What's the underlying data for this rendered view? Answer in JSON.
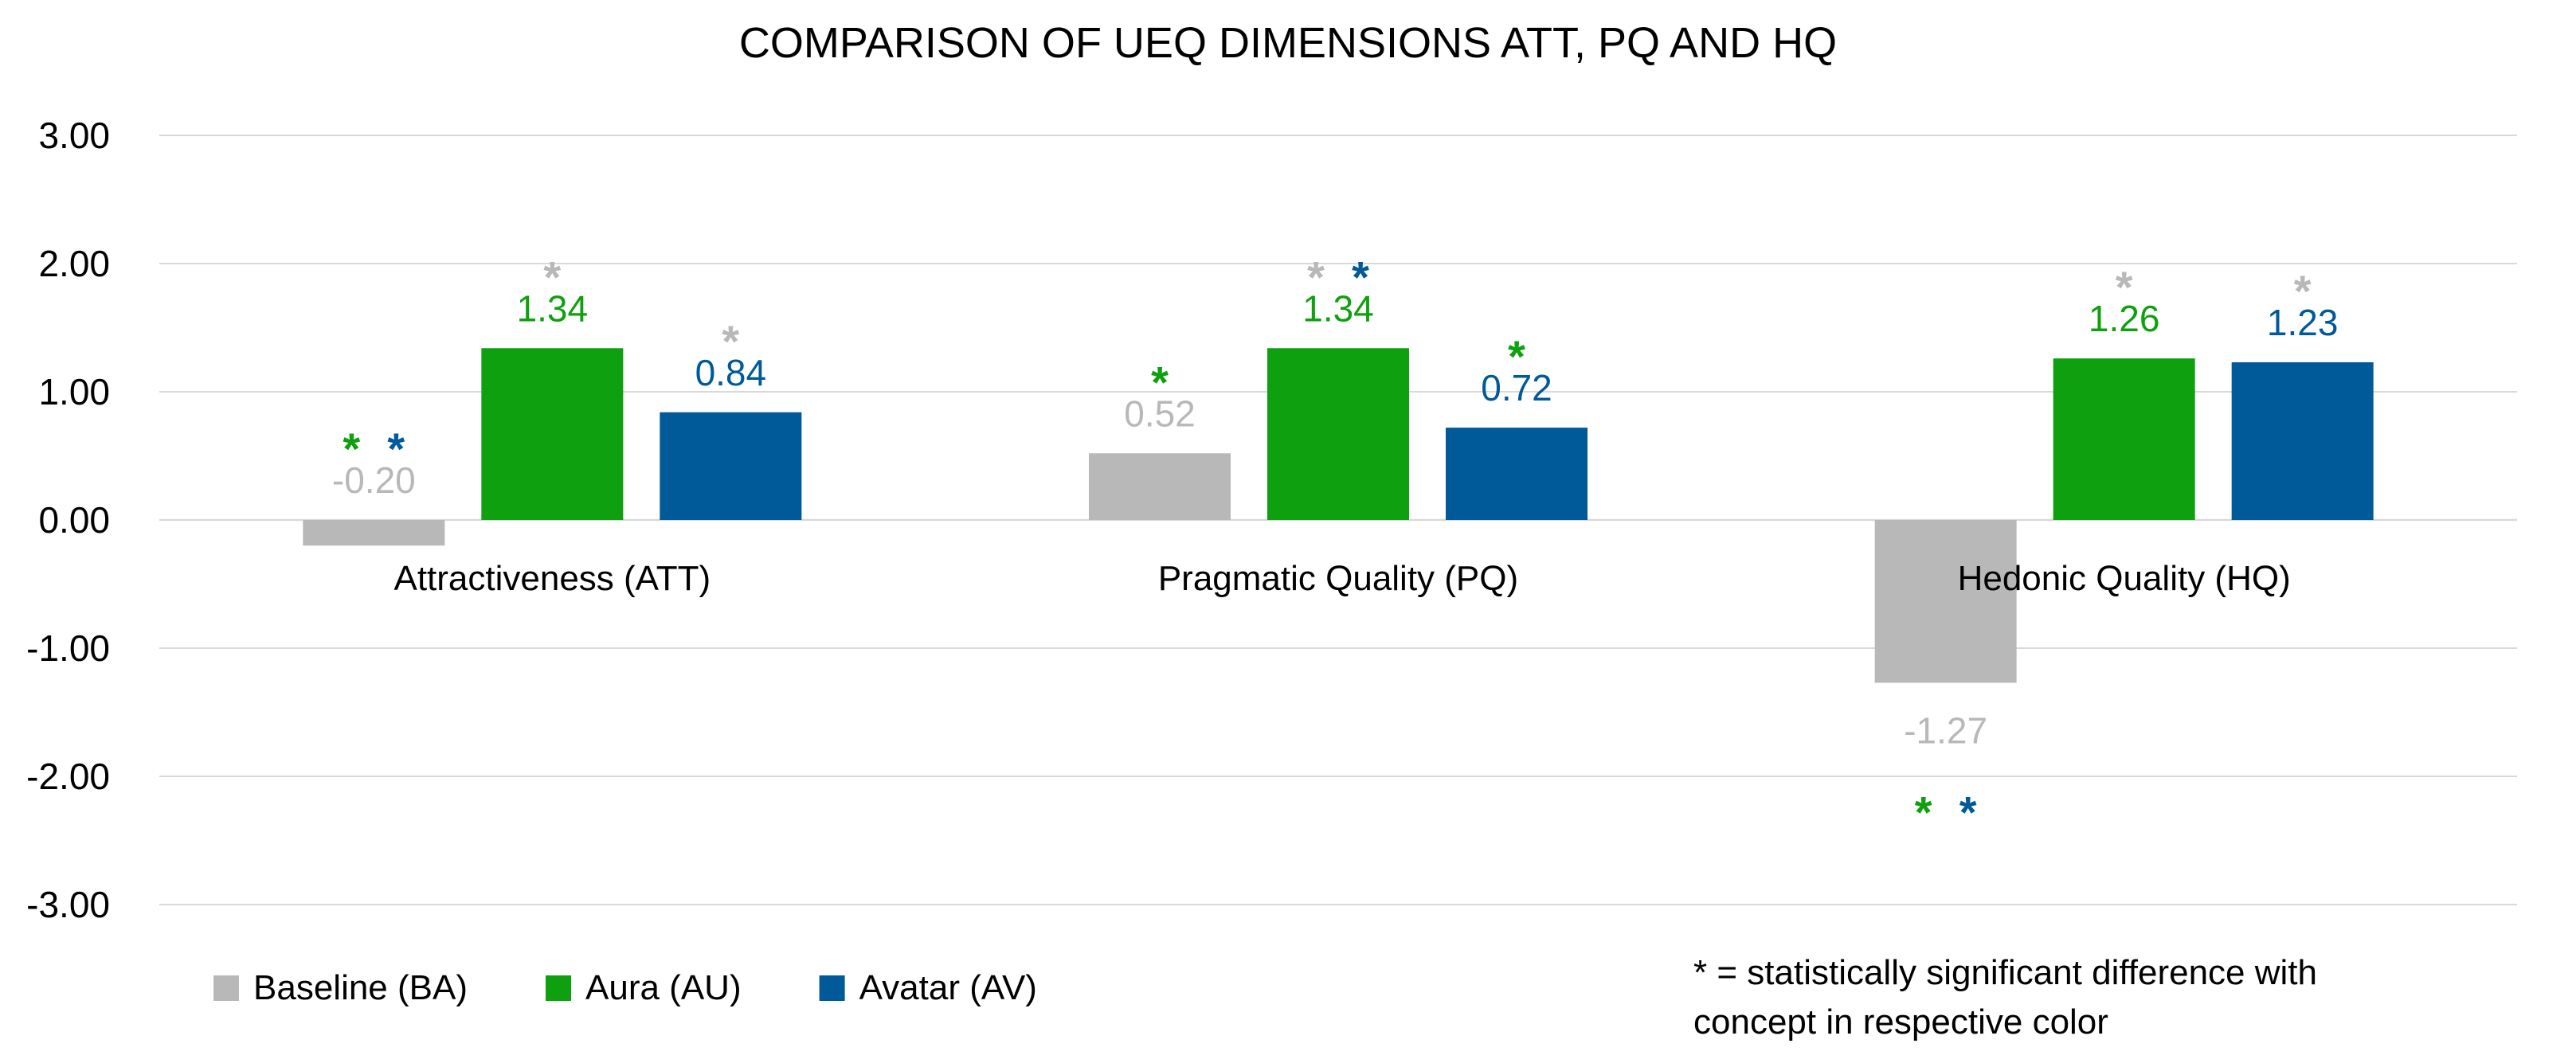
{
  "chart_data": {
    "type": "bar",
    "title": "COMPARISON OF UEQ DIMENSIONS ATT, PQ AND HQ",
    "xlabel": "",
    "ylabel": "",
    "ylim": [
      -3,
      3
    ],
    "yticks": [
      "3.00",
      "2.00",
      "1.00",
      "0.00",
      "-1.00",
      "-2.00",
      "-3.00"
    ],
    "grid": true,
    "legend_position": "bottom-left",
    "categories": [
      "Attractiveness (ATT)",
      "Pragmatic Quality (PQ)",
      "Hedonic Quality (HQ)"
    ],
    "series": [
      {
        "name": "Baseline (BA)",
        "color": "#b8b8b8",
        "values": [
          -0.2,
          0.52,
          -1.27
        ],
        "labels": [
          "-0.20",
          "0.52",
          "-1.27"
        ],
        "significance": [
          [
            "AU",
            "AV"
          ],
          [
            "AU"
          ],
          [
            "AU",
            "AV"
          ]
        ]
      },
      {
        "name": "Aura (AU)",
        "color": "#0ea00e",
        "values": [
          1.34,
          1.34,
          1.26
        ],
        "labels": [
          "1.34",
          "1.34",
          "1.26"
        ],
        "significance": [
          [
            "BA"
          ],
          [
            "BA",
            "AV"
          ],
          [
            "BA"
          ]
        ]
      },
      {
        "name": "Avatar (AV)",
        "color": "#005a99",
        "values": [
          0.84,
          0.72,
          1.23
        ],
        "labels": [
          "0.84",
          "0.72",
          "1.23"
        ],
        "significance": [
          [
            "BA"
          ],
          [
            "AU"
          ],
          [
            "BA"
          ]
        ]
      }
    ],
    "significance_symbol": "*",
    "significance_colors": {
      "BA": "#b8b8b8",
      "AU": "#0ea00e",
      "AV": "#005a99"
    },
    "note_lines": [
      "* = statistically significant difference with",
      "concept in respective color"
    ]
  }
}
